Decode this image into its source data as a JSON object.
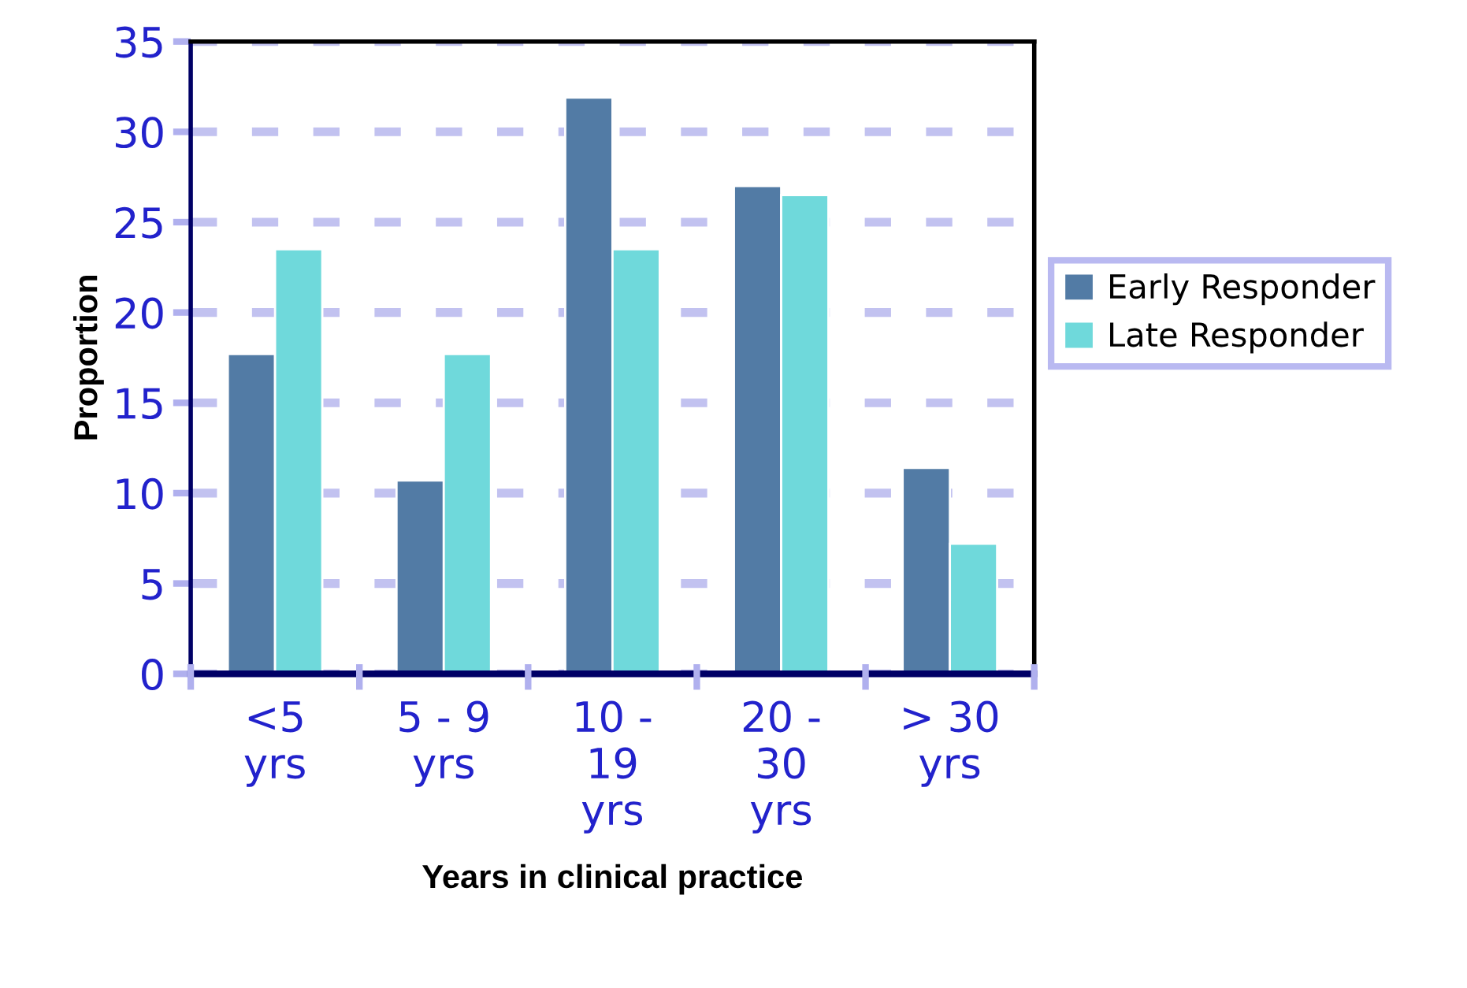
{
  "chart_data": {
    "type": "bar",
    "xlabel": "Years in clinical practice",
    "ylabel": "Proportion",
    "categories": [
      "<5\nyrs",
      "5 - 9\nyrs",
      "10 -\n19\nyrs",
      "20 -\n30\nyrs",
      "> 30\nyrs"
    ],
    "series": [
      {
        "name": "Early Responder",
        "color": "#527ba5",
        "values": [
          17.7,
          10.7,
          31.9,
          27.0,
          11.4
        ]
      },
      {
        "name": "Late Responder",
        "color": "#6fd9db",
        "values": [
          23.5,
          17.7,
          23.5,
          26.5,
          7.2
        ]
      }
    ],
    "ylim": [
      0,
      35
    ],
    "yticks": [
      0,
      5,
      10,
      15,
      20,
      25,
      30,
      35
    ],
    "grid": "y",
    "legend": "right"
  }
}
